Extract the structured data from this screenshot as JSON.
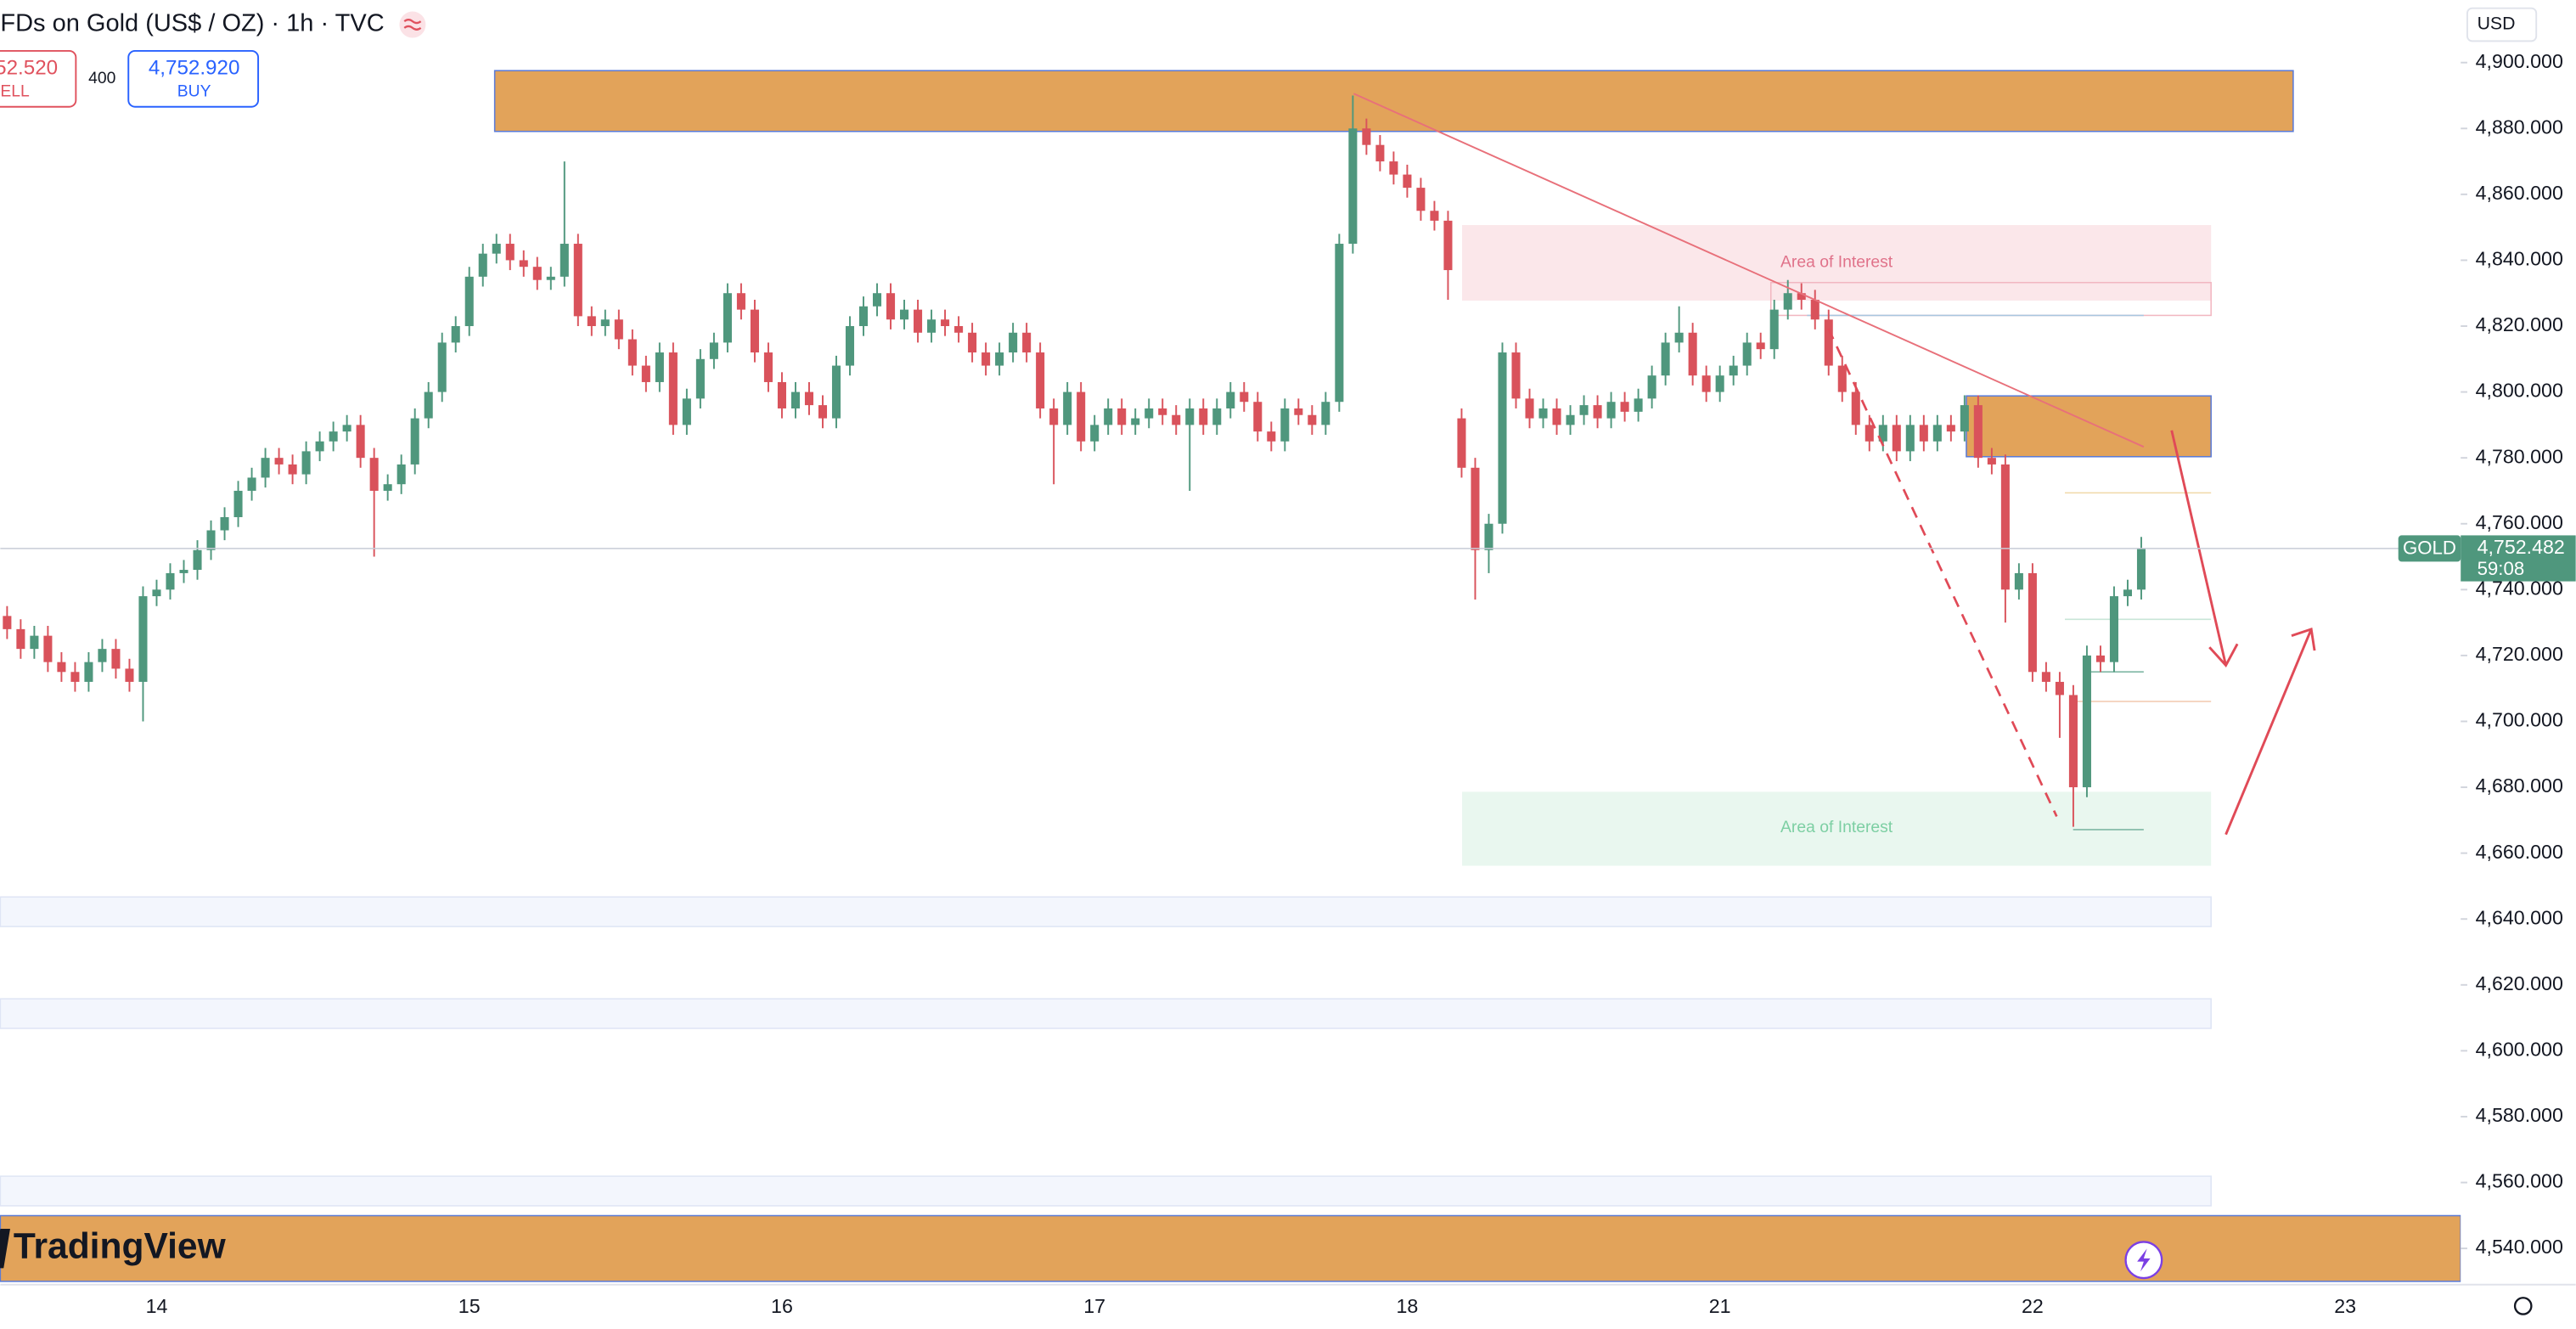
{
  "header": {
    "title": "FDs on Gold (US$ / OZ) · 1h · TVC",
    "sell_price": "52.520",
    "sell_label": "ELL",
    "spread": "400",
    "buy_price": "4,752.920",
    "buy_label": "BUY",
    "currency": "USD"
  },
  "annotations": [
    "Area of Interest",
    "Area of Interest"
  ],
  "watermark": "TradingView",
  "price_tag": {
    "symbol": "GOLD",
    "label": "4,752.482",
    "countdown": "59:08"
  },
  "chart_data": {
    "type": "candlestick",
    "grid": false,
    "colors": {
      "up": "#4f977d",
      "down": "#d9525b"
    },
    "ylim": [
      4529,
      4919
    ],
    "yticks": [
      {
        "value": 4540,
        "label": "4,540.000"
      },
      {
        "value": 4560,
        "label": "4,560.000"
      },
      {
        "value": 4580,
        "label": "4,580.000"
      },
      {
        "value": 4600,
        "label": "4,600.000"
      },
      {
        "value": 4620,
        "label": "4,620.000"
      },
      {
        "value": 4640,
        "label": "4,640.000"
      },
      {
        "value": 4660,
        "label": "4,660.000"
      },
      {
        "value": 4680,
        "label": "4,680.000"
      },
      {
        "value": 4700,
        "label": "4,700.000"
      },
      {
        "value": 4720,
        "label": "4,720.000"
      },
      {
        "value": 4740,
        "label": "4,740.000"
      },
      {
        "value": 4760,
        "label": "4,760.000"
      },
      {
        "value": 4780,
        "label": "4,780.000"
      },
      {
        "value": 4800,
        "label": "4,800.000"
      },
      {
        "value": 4820,
        "label": "4,820.000"
      },
      {
        "value": 4840,
        "label": "4,840.000"
      },
      {
        "value": 4860,
        "label": "4,860.000"
      },
      {
        "value": 4880,
        "label": "4,880.000"
      },
      {
        "value": 4900,
        "label": "4,900.000"
      }
    ],
    "categories": [
      null,
      null,
      null,
      null,
      null,
      null,
      null,
      null,
      null,
      null,
      null,
      "14",
      null,
      null,
      null,
      null,
      null,
      null,
      null,
      null,
      null,
      null,
      null,
      null,
      null,
      null,
      null,
      null,
      null,
      null,
      null,
      null,
      null,
      null,
      "15",
      null,
      null,
      null,
      null,
      null,
      null,
      null,
      null,
      null,
      null,
      null,
      null,
      null,
      null,
      null,
      null,
      null,
      null,
      null,
      null,
      null,
      null,
      "16",
      null,
      null,
      null,
      null,
      null,
      null,
      null,
      null,
      null,
      null,
      null,
      null,
      null,
      null,
      null,
      null,
      null,
      null,
      null,
      null,
      null,
      null,
      "17",
      null,
      null,
      null,
      null,
      null,
      null,
      null,
      null,
      null,
      null,
      null,
      null,
      null,
      null,
      null,
      null,
      null,
      null,
      null,
      null,
      null,
      null,
      "18",
      null,
      null,
      null,
      null,
      null,
      null,
      null,
      null,
      null,
      null,
      null,
      null,
      null,
      null,
      null,
      null,
      null,
      null,
      null,
      null,
      null,
      null,
      "21",
      null,
      null,
      null,
      null,
      null,
      null,
      null,
      null,
      null,
      null,
      null,
      null,
      null,
      null,
      null,
      null,
      null,
      null,
      null,
      null,
      null,
      null,
      "22",
      null,
      null,
      null,
      null,
      null,
      null,
      null,
      null,
      null,
      null,
      null,
      null,
      null,
      null,
      null,
      null,
      null,
      null,
      null,
      null,
      null,
      null,
      "23",
      null,
      null,
      null,
      null,
      null,
      null,
      null,
      null
    ],
    "open": [
      4732,
      4728,
      4722,
      4726,
      4718,
      4715,
      4712,
      4718,
      4722,
      4716,
      4712,
      4738,
      4740,
      4745,
      4746,
      4752,
      4758,
      4762,
      4770,
      4774,
      4780,
      4778,
      4775,
      4782,
      4785,
      4788,
      4790,
      4780,
      4770,
      4772,
      4778,
      4792,
      4800,
      4815,
      4820,
      4835,
      4842,
      4845,
      4840,
      4838,
      4834,
      4835,
      4845,
      4823,
      4820,
      4822,
      4816,
      4808,
      4803,
      4812,
      4790,
      4798,
      4810,
      4815,
      4830,
      4825,
      4812,
      4803,
      4795,
      4800,
      4796,
      4792,
      4808,
      4820,
      4826,
      4830,
      4822,
      4825,
      4818,
      4822,
      4820,
      4818,
      4812,
      4808,
      4812,
      4818,
      4812,
      4795,
      4790,
      4800,
      4785,
      4790,
      4795,
      4790,
      4792,
      4795,
      4793,
      4790,
      4795,
      4790,
      4795,
      4800,
      4797,
      4788,
      4785,
      4795,
      4793,
      4790,
      4797,
      4845,
      4880,
      4875,
      4870,
      4866,
      4862,
      4855,
      4852,
      4792,
      4777,
      4752,
      4760,
      4812,
      4798,
      4792,
      4795,
      4790,
      4793,
      4796,
      4792,
      4797,
      4794,
      4798,
      4805,
      4815,
      4818,
      4805,
      4800,
      4805,
      4808,
      4815,
      4813,
      4825,
      4830,
      4828,
      4822,
      4808,
      4800,
      4790,
      4785,
      4790,
      4782,
      4790,
      4785,
      4790,
      4788,
      4796,
      4780,
      4778,
      4740,
      4745,
      4715,
      4712,
      4708,
      4680,
      4720,
      4718,
      4738,
      4740,
      null,
      null,
      null,
      null,
      null,
      null,
      null,
      null,
      null,
      null,
      null,
      null,
      null,
      null,
      null,
      null,
      null,
      null,
      null,
      null,
      null,
      null,
      null
    ],
    "high": [
      4735,
      4731,
      4729,
      4729,
      4721,
      4718,
      4721,
      4725,
      4725,
      4719,
      4741,
      4743,
      4748,
      4749,
      4755,
      4761,
      4765,
      4773,
      4777,
      4783,
      4783,
      4781,
      4785,
      4788,
      4791,
      4793,
      4793,
      4783,
      4775,
      4781,
      4795,
      4803,
      4818,
      4823,
      4838,
      4845,
      4848,
      4848,
      4843,
      4841,
      4838,
      4870,
      4848,
      4826,
      4825,
      4825,
      4819,
      4811,
      4815,
      4815,
      4801,
      4813,
      4818,
      4833,
      4833,
      4828,
      4815,
      4806,
      4803,
      4803,
      4799,
      4811,
      4823,
      4829,
      4833,
      4833,
      4828,
      4828,
      4825,
      4825,
      4823,
      4821,
      4815,
      4815,
      4821,
      4821,
      4815,
      4798,
      4803,
      4803,
      4793,
      4798,
      4798,
      4795,
      4798,
      4798,
      4796,
      4798,
      4798,
      4798,
      4803,
      4803,
      4800,
      4791,
      4798,
      4798,
      4796,
      4800,
      4848,
      4890,
      4883,
      4878,
      4873,
      4869,
      4865,
      4858,
      4855,
      4795,
      4780,
      4763,
      4815,
      4815,
      4801,
      4798,
      4798,
      4796,
      4799,
      4799,
      4800,
      4800,
      4801,
      4808,
      4818,
      4826,
      4821,
      4808,
      4808,
      4811,
      4818,
      4818,
      4828,
      4834,
      4833,
      4831,
      4825,
      4811,
      4803,
      4793,
      4793,
      4793,
      4793,
      4793,
      4793,
      4793,
      4799,
      4799,
      4783,
      4781,
      4748,
      4748,
      4718,
      4715,
      4711,
      4723,
      4723,
      4741,
      4743,
      4756,
      null,
      null,
      null,
      null,
      null,
      null,
      null,
      null,
      null,
      null,
      null,
      null,
      null,
      null,
      null,
      null,
      null,
      null,
      null,
      null,
      null,
      null,
      null
    ],
    "low": [
      4725,
      4719,
      4719,
      4715,
      4712,
      4709,
      4709,
      4715,
      4713,
      4709,
      4700,
      4735,
      4737,
      4742,
      4743,
      4749,
      4755,
      4759,
      4767,
      4771,
      4775,
      4772,
      4772,
      4779,
      4782,
      4785,
      4777,
      4750,
      4767,
      4769,
      4775,
      4789,
      4797,
      4812,
      4817,
      4832,
      4839,
      4837,
      4835,
      4831,
      4831,
      4832,
      4820,
      4817,
      4817,
      4813,
      4805,
      4800,
      4800,
      4787,
      4787,
      4795,
      4807,
      4812,
      4822,
      4809,
      4800,
      4792,
      4792,
      4793,
      4789,
      4789,
      4805,
      4817,
      4823,
      4819,
      4819,
      4815,
      4815,
      4817,
      4815,
      4809,
      4805,
      4805,
      4809,
      4809,
      4792,
      4772,
      4787,
      4782,
      4782,
      4787,
      4787,
      4787,
      4789,
      4790,
      4787,
      4770,
      4787,
      4787,
      4792,
      4794,
      4785,
      4782,
      4782,
      4790,
      4787,
      4787,
      4794,
      4842,
      4872,
      4867,
      4863,
      4859,
      4852,
      4849,
      4828,
      4774,
      4737,
      4745,
      4757,
      4795,
      4789,
      4789,
      4787,
      4787,
      4790,
      4789,
      4789,
      4791,
      4791,
      4795,
      4802,
      4812,
      4802,
      4797,
      4797,
      4802,
      4805,
      4810,
      4810,
      4822,
      4825,
      4819,
      4805,
      4797,
      4787,
      4782,
      4782,
      4779,
      4779,
      4782,
      4782,
      4785,
      4785,
      4777,
      4775,
      4730,
      4737,
      4712,
      4709,
      4695,
      4668,
      4677,
      4715,
      4715,
      4735,
      4737,
      null,
      null,
      null,
      null,
      null,
      null,
      null,
      null,
      null,
      null,
      null,
      null,
      null,
      null,
      null,
      null,
      null,
      null,
      null,
      null,
      null,
      null,
      null
    ],
    "close": [
      4728,
      4722,
      4726,
      4718,
      4715,
      4712,
      4718,
      4722,
      4716,
      4712,
      4738,
      4740,
      4745,
      4746,
      4752,
      4758,
      4762,
      4770,
      4774,
      4780,
      4778,
      4775,
      4782,
      4785,
      4788,
      4790,
      4780,
      4770,
      4772,
      4778,
      4792,
      4800,
      4815,
      4820,
      4835,
      4842,
      4845,
      4840,
      4838,
      4834,
      4835,
      4845,
      4823,
      4820,
      4822,
      4816,
      4808,
      4803,
      4812,
      4790,
      4798,
      4810,
      4815,
      4830,
      4825,
      4812,
      4803,
      4795,
      4800,
      4796,
      4792,
      4808,
      4820,
      4826,
      4830,
      4822,
      4825,
      4818,
      4822,
      4820,
      4818,
      4812,
      4808,
      4812,
      4818,
      4812,
      4795,
      4790,
      4800,
      4785,
      4790,
      4795,
      4790,
      4792,
      4795,
      4793,
      4790,
      4795,
      4790,
      4795,
      4800,
      4797,
      4788,
      4785,
      4795,
      4793,
      4790,
      4797,
      4845,
      4880,
      4875,
      4870,
      4866,
      4862,
      4855,
      4852,
      4837,
      4777,
      4752,
      4760,
      4812,
      4798,
      4792,
      4795,
      4790,
      4793,
      4796,
      4792,
      4797,
      4794,
      4798,
      4805,
      4815,
      4818,
      4805,
      4800,
      4805,
      4808,
      4815,
      4813,
      4825,
      4830,
      4828,
      4822,
      4808,
      4800,
      4790,
      4785,
      4790,
      4782,
      4790,
      4785,
      4790,
      4788,
      4796,
      4780,
      4778,
      4740,
      4745,
      4715,
      4712,
      4708,
      4680,
      4720,
      4718,
      4738,
      4740,
      4752.482,
      null,
      null,
      null,
      null,
      null,
      null,
      null,
      null,
      null,
      null,
      null,
      null,
      null,
      null,
      null,
      null,
      null,
      null,
      null,
      null,
      null,
      null,
      null
    ]
  }
}
